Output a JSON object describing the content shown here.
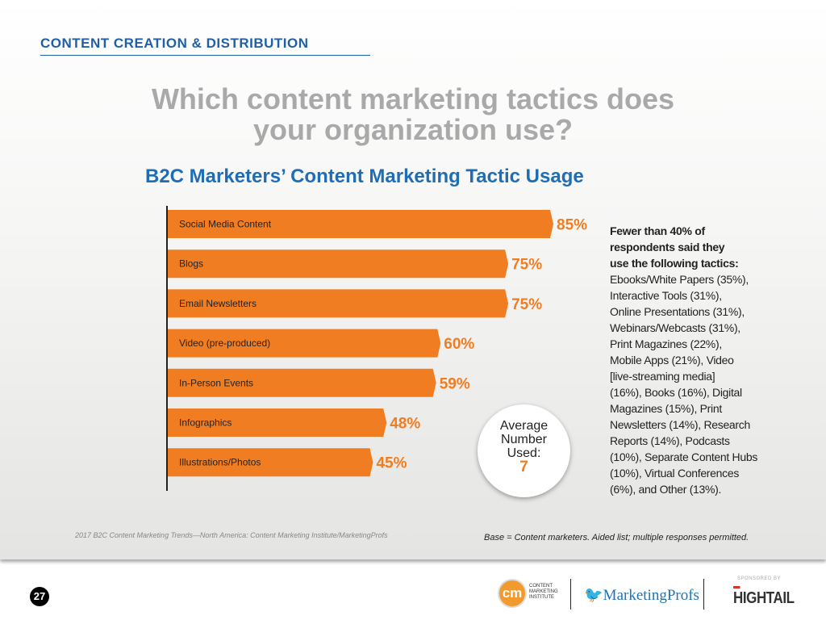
{
  "header": {
    "section": "CONTENT CREATION & DISTRIBUTION",
    "question": "Which content marketing tactics does your organization use?"
  },
  "chart_data": {
    "type": "bar",
    "orientation": "horizontal",
    "title": "B2C Marketers’ Content Marketing Tactic Usage",
    "categories": [
      "Social Media Content",
      "Blogs",
      "Email Newsletters",
      "Video (pre-produced)",
      "In-Person Events",
      "Infographics",
      "Illustrations/Photos"
    ],
    "values": [
      85,
      75,
      75,
      60,
      59,
      48,
      45
    ],
    "value_labels": [
      "85%",
      "75%",
      "75%",
      "60%",
      "59%",
      "48%",
      "45%"
    ],
    "xlim": [
      0,
      100
    ],
    "grid": false,
    "bar_color": "#f07d22",
    "label_color": "#f07d22"
  },
  "average": {
    "label_lines": [
      "Average",
      "Number",
      "Used:"
    ],
    "value": "7"
  },
  "sidebar": {
    "bold_lines": [
      "Fewer than 40% of",
      "respondents said they",
      "use the following tactics:"
    ],
    "lines": [
      "Ebooks/White Papers (35%),",
      "Interactive Tools (31%),",
      "Online Presentations (31%),",
      "Webinars/Webcasts (31%),",
      "Print Magazines (22%),",
      "Mobile Apps (21%), Video",
      "[live-streaming media]",
      "(16%), Books (16%), Digital",
      "Magazines (15%), Print",
      "Newsletters (14%), Research",
      "Reports (14%), Podcasts",
      "(10%), Separate Content Hubs",
      "(10%), Virtual Conferences",
      "(6%), and Other (13%)."
    ]
  },
  "footer": {
    "source": "2017 B2C Content Marketing Trends—North America: Content Marketing Institute/MarketingProfs",
    "base": "Base = Content marketers. Aided list; multiple responses permitted.",
    "page": "27",
    "cmi_logo": "cm",
    "cmi_text": [
      "CONTENT",
      "MARKETING",
      "INSTITUTE"
    ],
    "mp_logo": "MarketingProfs",
    "sponsored": "SPONSORED BY",
    "hightail": "HIGHTAIL"
  }
}
